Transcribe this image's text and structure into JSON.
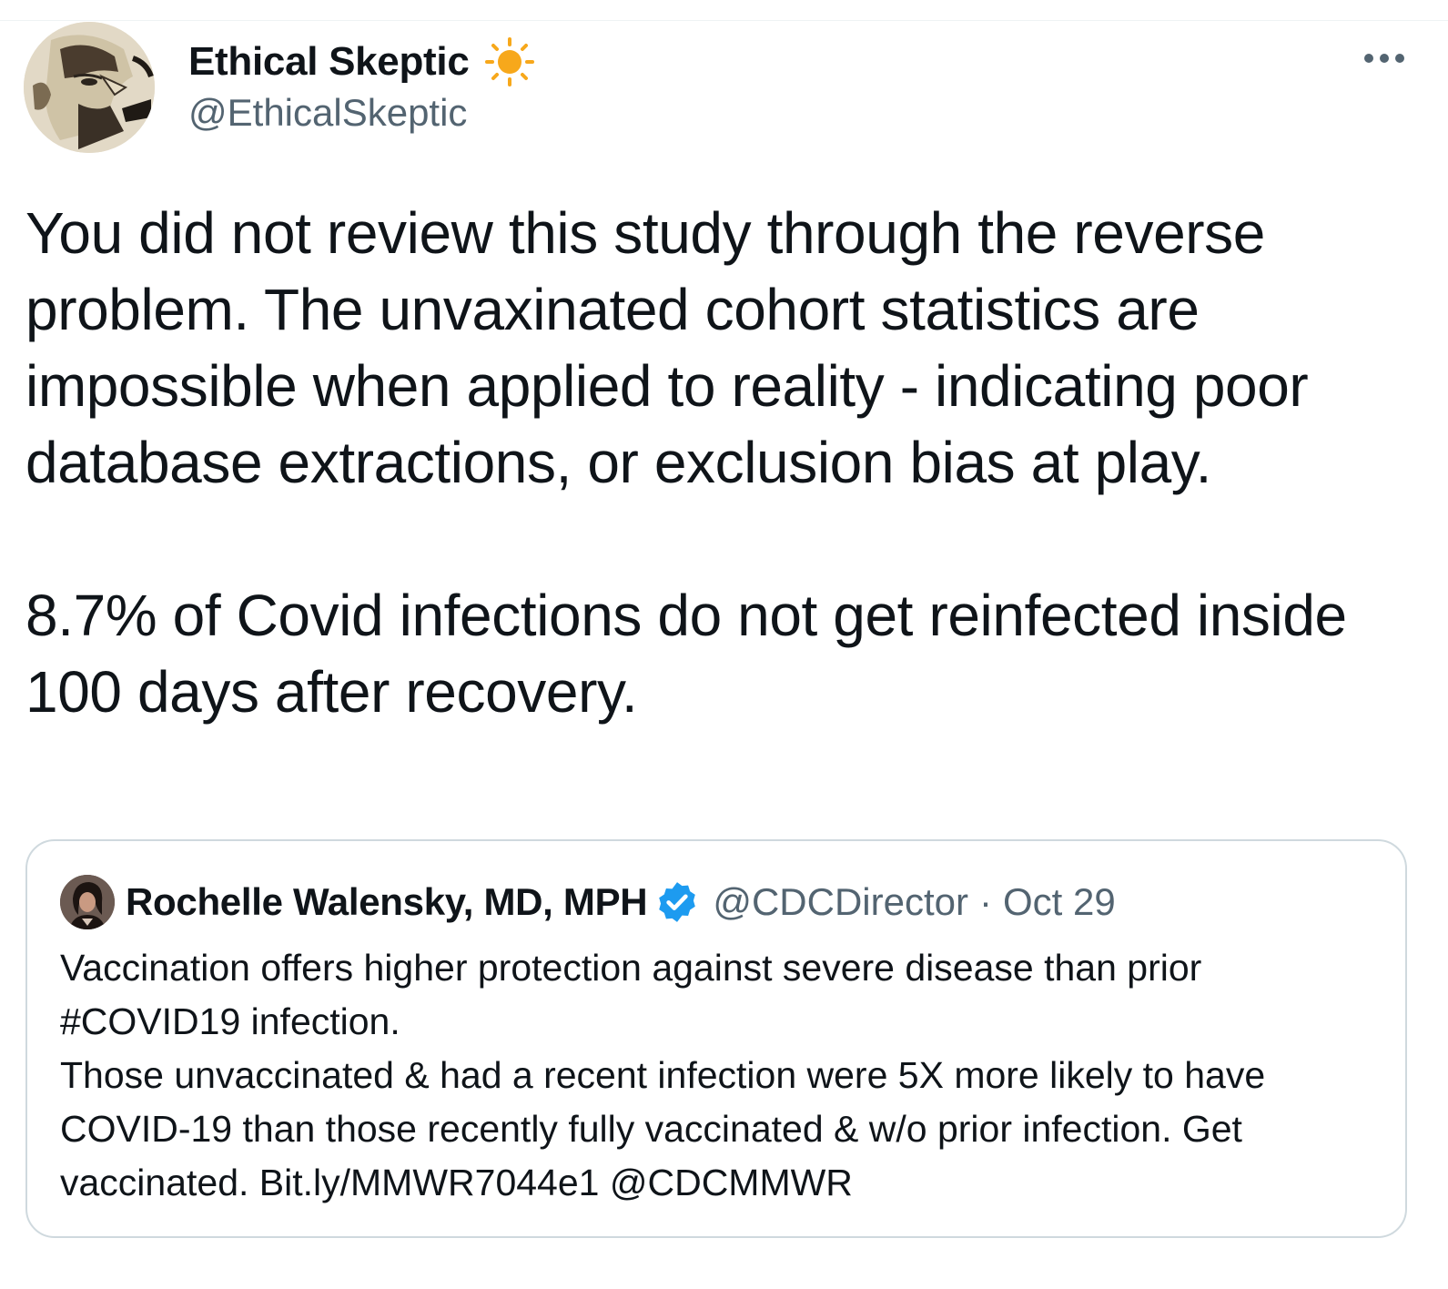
{
  "tweet": {
    "author": {
      "display_name": "Ethical Skeptic",
      "handle": "@EthicalSkeptic",
      "badge_icon": "sun-icon",
      "avatar_icon": "egyptian-figure-avatar"
    },
    "more_icon": "more-options-icon",
    "text": "You did not review this study through the reverse problem. The unvaxinated cohort statistics are impossible when applied to reality - indicating poor database extractions, or exclusion bias at play.\n\n8.7% of Covid infections do not get reinfected inside 100 days after recovery."
  },
  "quoted_tweet": {
    "author": {
      "display_name": "Rochelle Walensky, MD, MPH",
      "handle": "@CDCDirector",
      "verified_icon": "verified-badge-icon"
    },
    "separator": "·",
    "date": "Oct 29",
    "text": "Vaccination offers higher protection against severe disease than prior #COVID19 infection.\nThose unvaccinated & had a recent infection were 5X more likely to have COVID-19 than those recently fully vaccinated & w/o prior infection. Get vaccinated. Bit.ly/MMWR7044e1 @CDCMMWR"
  },
  "colors": {
    "text_primary": "#0f1419",
    "text_secondary": "#536471",
    "border": "#cfd9de",
    "verified_blue": "#1d9bf0",
    "sun_orange": "#f7a81b"
  }
}
